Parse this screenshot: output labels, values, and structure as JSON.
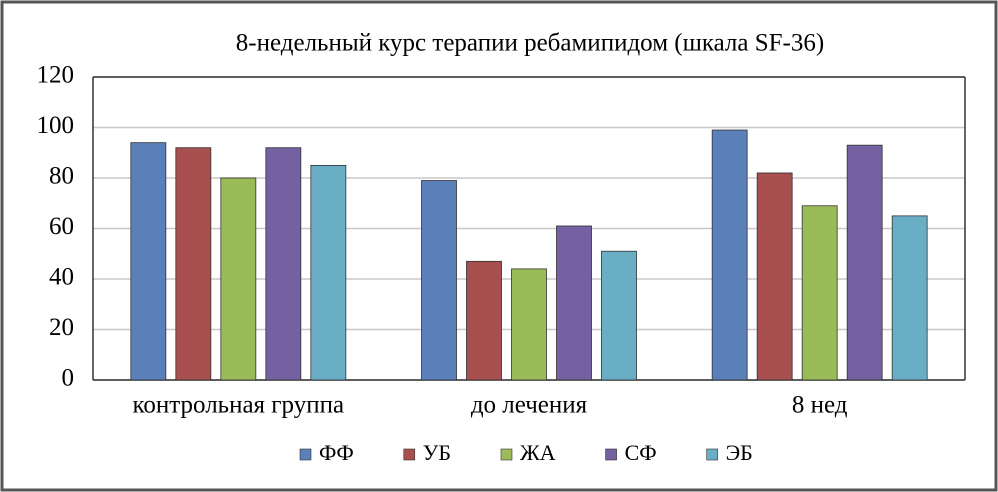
{
  "chart_data": {
    "type": "bar",
    "title": "8-недельный курс терапии ребамипидом (шкала SF-36)",
    "categories": [
      "контрольная группа",
      "до лечения",
      "8 нед"
    ],
    "series": [
      {
        "name": "ФФ",
        "color": "#5b7fb9",
        "values": [
          94,
          79,
          99
        ]
      },
      {
        "name": "УБ",
        "color": "#a84f4f",
        "values": [
          92,
          47,
          82
        ]
      },
      {
        "name": "ЖА",
        "color": "#9bbb59",
        "values": [
          80,
          44,
          69
        ]
      },
      {
        "name": "СФ",
        "color": "#7561a1",
        "values": [
          92,
          61,
          93
        ]
      },
      {
        "name": "ЭБ",
        "color": "#6aaec6",
        "values": [
          85,
          51,
          65
        ]
      }
    ],
    "ylim": [
      0,
      120
    ],
    "yticks": [
      0,
      20,
      40,
      60,
      80,
      100,
      120
    ],
    "grid": true,
    "legend": "bottom"
  }
}
